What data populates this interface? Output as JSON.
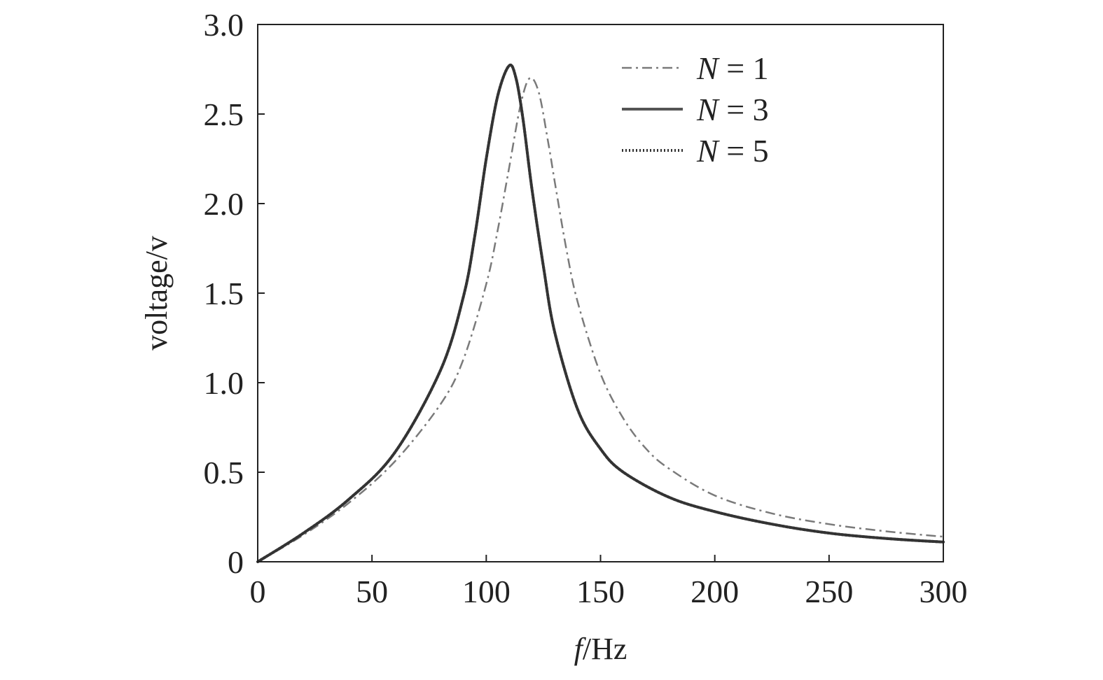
{
  "chart_data": {
    "type": "line",
    "xlabel_italic": "f",
    "xlabel_rest": "/Hz",
    "ylabel": "voltage/v",
    "xlim": [
      0,
      300
    ],
    "ylim": [
      0,
      3.0
    ],
    "x_ticks": [
      0,
      50,
      100,
      150,
      200,
      250,
      300
    ],
    "x_tick_labels": [
      "0",
      "50",
      "100",
      "150",
      "200",
      "250",
      "300"
    ],
    "y_ticks": [
      0,
      0.5,
      1.0,
      1.5,
      2.0,
      2.5,
      3.0
    ],
    "y_tick_labels": [
      "0",
      "0.5",
      "1.0",
      "1.5",
      "2.0",
      "2.5",
      "3.0"
    ],
    "grid": false,
    "legend_position": "top-right",
    "series": [
      {
        "name_var": "N",
        "name_rest": " = 1",
        "style": "dashdot",
        "color": "#7a7a7a",
        "x": [
          0,
          20,
          40,
          60,
          80,
          90,
          100,
          105,
          110,
          115,
          119,
          123,
          127,
          130,
          135,
          140,
          150,
          160,
          170,
          180,
          200,
          225,
          250,
          275,
          300
        ],
        "y": [
          0,
          0.15,
          0.33,
          0.56,
          0.88,
          1.13,
          1.55,
          1.85,
          2.2,
          2.55,
          2.7,
          2.62,
          2.35,
          2.12,
          1.75,
          1.45,
          1.05,
          0.8,
          0.63,
          0.52,
          0.37,
          0.27,
          0.21,
          0.17,
          0.14
        ]
      },
      {
        "name_var": "N",
        "name_rest": " = 3",
        "style": "solid",
        "color": "#555555",
        "x": [
          0,
          20,
          40,
          60,
          80,
          90,
          95,
          100,
          105,
          110,
          113,
          116,
          120,
          125,
          130,
          140,
          150,
          160,
          180,
          200,
          225,
          250,
          275,
          300
        ],
        "y": [
          0,
          0.16,
          0.35,
          0.61,
          1.07,
          1.48,
          1.82,
          2.25,
          2.6,
          2.77,
          2.7,
          2.48,
          2.08,
          1.65,
          1.28,
          0.85,
          0.63,
          0.5,
          0.36,
          0.28,
          0.21,
          0.16,
          0.13,
          0.11
        ]
      },
      {
        "name_var": "N",
        "name_rest": " = 5",
        "style": "dotted",
        "color": "#333333",
        "x": [
          0,
          20,
          40,
          60,
          80,
          90,
          95,
          100,
          105,
          110,
          113,
          116,
          120,
          125,
          130,
          140,
          150,
          160,
          180,
          200,
          225,
          250,
          275,
          300
        ],
        "y": [
          0,
          0.16,
          0.35,
          0.61,
          1.07,
          1.48,
          1.82,
          2.25,
          2.6,
          2.77,
          2.7,
          2.48,
          2.08,
          1.65,
          1.28,
          0.85,
          0.63,
          0.5,
          0.36,
          0.28,
          0.21,
          0.16,
          0.13,
          0.11
        ]
      }
    ]
  }
}
